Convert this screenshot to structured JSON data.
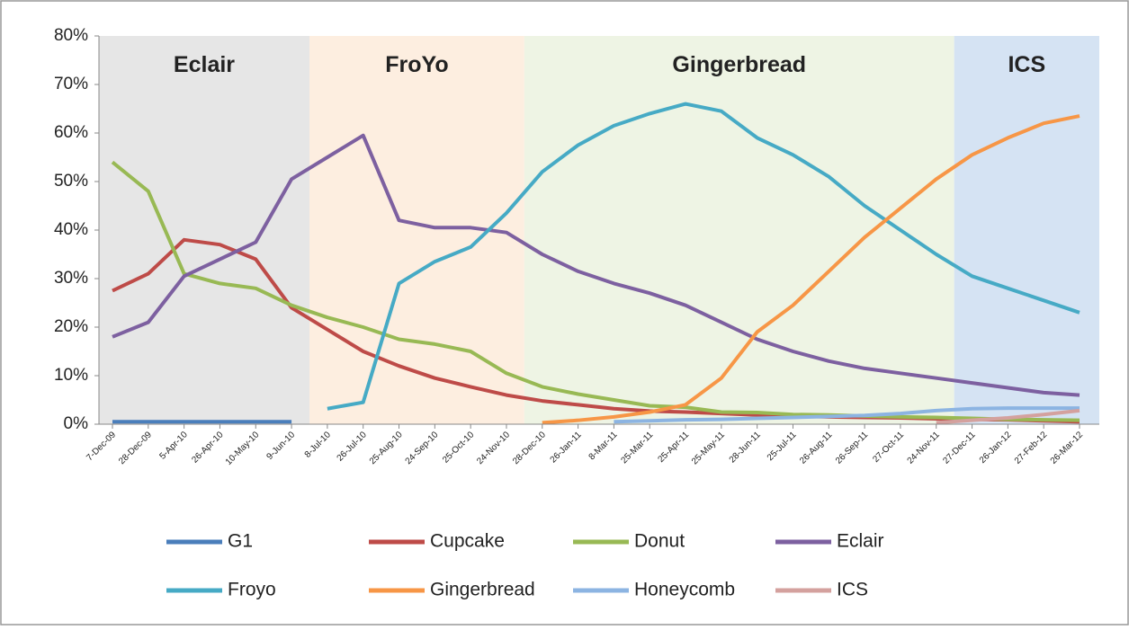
{
  "chart_data": {
    "type": "line",
    "categories": [
      "7-Dec-09",
      "28-Dec-09",
      "5-Apr-10",
      "26-Apr-10",
      "10-May-10",
      "9-Jun-10",
      "8-Jul-10",
      "26-Jul-10",
      "25-Aug-10",
      "24-Sep-10",
      "25-Oct-10",
      "24-Nov-10",
      "28-Dec-10",
      "26-Jan-11",
      "8-Mar-11",
      "25-Mar-11",
      "25-Apr-11",
      "25-May-11",
      "28-Jun-11",
      "25-Jul-11",
      "26-Aug-11",
      "26-Sep-11",
      "27-Oct-11",
      "24-Nov-11",
      "27-Dec-11",
      "26-Jan-12",
      "27-Feb-12",
      "26-Mar-12"
    ],
    "bands": [
      {
        "label": "Eclair",
        "from": "7-Dec-09",
        "to": "9-Jun-10",
        "color": "#e6e6e6"
      },
      {
        "label": "FroYo",
        "from": "8-Jul-10",
        "to": "24-Nov-10",
        "color": "#fdeee0"
      },
      {
        "label": "Gingerbread",
        "from": "28-Dec-10",
        "to": "24-Nov-11",
        "color": "#eef4e4"
      },
      {
        "label": "ICS",
        "from": "27-Dec-11",
        "to": "26-Mar-12",
        "color": "#d5e3f3"
      }
    ],
    "series": [
      {
        "name": "G1",
        "color": "#4a7ebb",
        "values": [
          0.5,
          0.5,
          0.5,
          0.5,
          0.5,
          0.5,
          null,
          null,
          null,
          null,
          null,
          null,
          null,
          null,
          null,
          null,
          null,
          null,
          null,
          null,
          null,
          null,
          null,
          null,
          null,
          null,
          null,
          null
        ]
      },
      {
        "name": "Cupcake",
        "color": "#be4b48",
        "values": [
          27.5,
          31,
          38,
          37,
          34,
          24,
          19.5,
          15,
          12,
          9.5,
          7.7,
          6,
          4.8,
          4,
          3.2,
          2.7,
          2.5,
          2.2,
          1.9,
          1.7,
          1.5,
          1.4,
          1.3,
          1.1,
          1,
          0.9,
          0.7,
          0.5
        ]
      },
      {
        "name": "Donut",
        "color": "#98b954",
        "values": [
          54,
          48,
          31,
          29,
          28,
          24.5,
          22,
          20,
          17.5,
          16.5,
          15,
          10.5,
          7.7,
          6.2,
          5,
          3.8,
          3.5,
          2.5,
          2.4,
          2,
          1.9,
          1.7,
          1.5,
          1.4,
          1.2,
          1,
          0.9,
          0.8
        ]
      },
      {
        "name": "Eclair",
        "color": "#7d60a0",
        "values": [
          18,
          21,
          30.5,
          34,
          37.5,
          50.5,
          55,
          59.5,
          42,
          40.5,
          40.5,
          39.5,
          35,
          31.5,
          29,
          27,
          24.5,
          21,
          17.5,
          15,
          13,
          11.5,
          10.5,
          9.5,
          8.5,
          7.5,
          6.5,
          6
        ]
      },
      {
        "name": "Froyo",
        "color": "#46aac5",
        "values": [
          null,
          null,
          null,
          null,
          null,
          null,
          3.2,
          4.5,
          29,
          33.5,
          36.5,
          43.5,
          52,
          57.5,
          61.5,
          64,
          66,
          64.5,
          59,
          55.5,
          51,
          45,
          40,
          35,
          30.5,
          28,
          25.5,
          23
        ]
      },
      {
        "name": "Gingerbread",
        "color": "#f79646",
        "values": [
          null,
          null,
          null,
          null,
          null,
          null,
          null,
          null,
          null,
          null,
          null,
          null,
          0.3,
          0.8,
          1.5,
          2.5,
          4,
          9.5,
          19,
          24.5,
          31.5,
          38.5,
          44.5,
          50.5,
          55.5,
          59,
          62,
          63.5
        ]
      },
      {
        "name": "Honeycomb",
        "color": "#8cb4e2",
        "values": [
          null,
          null,
          null,
          null,
          null,
          null,
          null,
          null,
          null,
          null,
          null,
          null,
          null,
          null,
          0.5,
          0.7,
          0.9,
          1,
          1.2,
          1.4,
          1.6,
          1.8,
          2.2,
          2.8,
          3.2,
          3.3,
          3.3,
          3.3
        ]
      },
      {
        "name": "ICS",
        "color": "#d4a19e",
        "values": [
          null,
          null,
          null,
          null,
          null,
          null,
          null,
          null,
          null,
          null,
          null,
          null,
          null,
          null,
          null,
          null,
          null,
          null,
          null,
          null,
          null,
          null,
          null,
          0.3,
          0.8,
          1.3,
          2,
          2.8
        ]
      }
    ],
    "ylim": [
      0,
      80
    ],
    "yticks": [
      {
        "value": 0,
        "label": "0%"
      },
      {
        "value": 10,
        "label": "10%"
      },
      {
        "value": 20,
        "label": "20%"
      },
      {
        "value": 30,
        "label": "30%"
      },
      {
        "value": 40,
        "label": "40%"
      },
      {
        "value": 50,
        "label": "50%"
      },
      {
        "value": 60,
        "label": "60%"
      },
      {
        "value": 70,
        "label": "70%"
      },
      {
        "value": 80,
        "label": "80%"
      }
    ],
    "legend": "bottom"
  }
}
